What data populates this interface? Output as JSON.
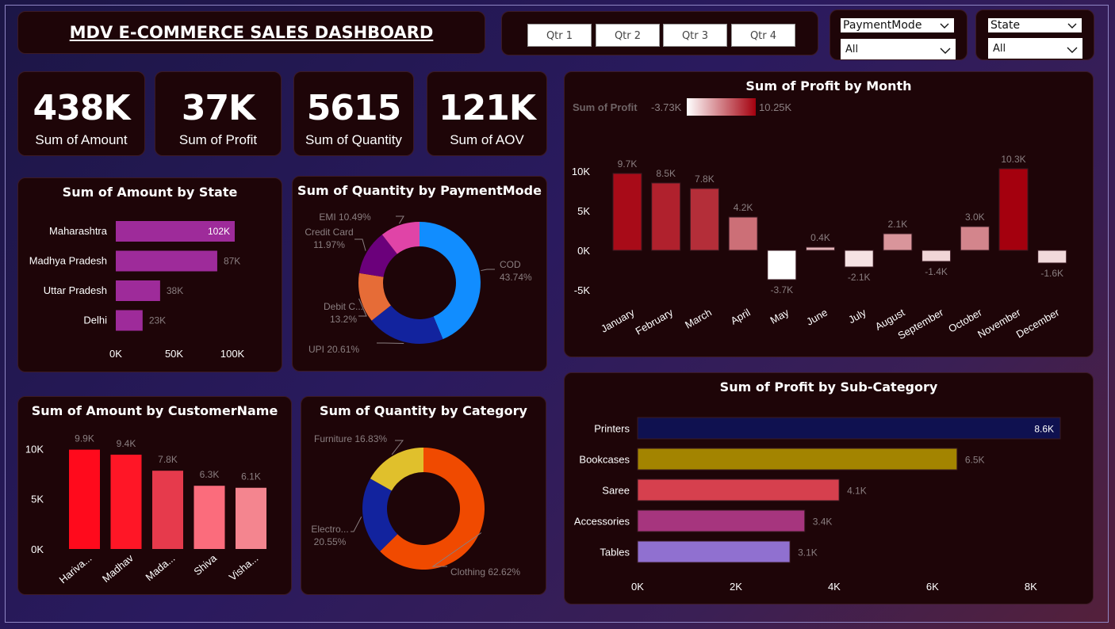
{
  "header": {
    "title": "MDV E-COMMERCE SALES DASHBOARD"
  },
  "quarters": [
    "Qtr 1",
    "Qtr 2",
    "Qtr 3",
    "Qtr 4"
  ],
  "slicers": {
    "payment": {
      "label": "PaymentMode",
      "value": "All"
    },
    "state": {
      "label": "State",
      "value": "All"
    }
  },
  "kpis": [
    {
      "value": "438K",
      "label": "Sum of Amount"
    },
    {
      "value": "37K",
      "label": "Sum of Profit"
    },
    {
      "value": "5615",
      "label": "Sum of Quantity"
    },
    {
      "value": "121K",
      "label": "Sum of AOV"
    }
  ],
  "chart_data": [
    {
      "id": "amount_by_state",
      "type": "bar",
      "orientation": "horizontal",
      "title": "Sum of Amount by State",
      "categories": [
        "Maharashtra",
        "Madhya Pradesh",
        "Uttar Pradesh",
        "Delhi"
      ],
      "values": [
        102000,
        87000,
        38000,
        23000
      ],
      "value_labels": [
        "102K",
        "87K",
        "38K",
        "23K"
      ],
      "xticks": [
        0,
        50000,
        100000
      ],
      "xtick_labels": [
        "0K",
        "50K",
        "100K"
      ],
      "xlim": [
        0,
        102000
      ],
      "color": "#9e2b9a"
    },
    {
      "id": "quantity_by_payment",
      "type": "pie",
      "donut": true,
      "title": "Sum of Quantity by PaymentMode",
      "categories": [
        "COD",
        "UPI",
        "Debit Card",
        "Credit Card",
        "EMI"
      ],
      "display_names": [
        "COD",
        "UPI",
        "Debit C...",
        "Credit Card",
        "EMI"
      ],
      "values": [
        43.74,
        20.61,
        13.2,
        11.97,
        10.49
      ],
      "value_labels": [
        "43.74%",
        "20.61%",
        "13.2%",
        "11.97%",
        "10.49%"
      ],
      "colors": [
        "#118dff",
        "#12239e",
        "#e66c37",
        "#6b007b",
        "#e044a7"
      ]
    },
    {
      "id": "profit_by_month",
      "type": "bar",
      "title": "Sum of Profit by Month",
      "legend_title": "Sum of Profit",
      "legend_min": "-3.73K",
      "legend_max": "10.25K",
      "categories": [
        "January",
        "February",
        "March",
        "April",
        "May",
        "June",
        "July",
        "August",
        "September",
        "October",
        "November",
        "December"
      ],
      "values": [
        9700,
        8500,
        7800,
        4200,
        -3700,
        400,
        -2100,
        2100,
        -1400,
        3000,
        10300,
        -1600
      ],
      "value_labels": [
        "9.7K",
        "8.5K",
        "7.8K",
        "4.2K",
        "-3.7K",
        "0.4K",
        "-2.1K",
        "2.1K",
        "-1.4K",
        "3.0K",
        "10.3K",
        "-1.6K"
      ],
      "yticks": [
        -5000,
        0,
        5000,
        10000
      ],
      "ytick_labels": [
        "-5K",
        "0K",
        "5K",
        "10K"
      ],
      "ylim": [
        -5500,
        12500
      ]
    },
    {
      "id": "amount_by_customer",
      "type": "bar",
      "title": "Sum of Amount by CustomerName",
      "categories": [
        "Harivansh",
        "Madhav",
        "Madan Mohan",
        "Shiva",
        "Vishakha"
      ],
      "display_names": [
        "Hariva...",
        "Madhav",
        "Mada...",
        "Shiva",
        "Visha..."
      ],
      "values": [
        9900,
        9400,
        7800,
        6300,
        6100
      ],
      "value_labels": [
        "9.9K",
        "9.4K",
        "7.8K",
        "6.3K",
        "6.1K"
      ],
      "yticks": [
        0,
        5000,
        10000
      ],
      "ytick_labels": [
        "0K",
        "5K",
        "10K"
      ],
      "ylim": [
        0,
        12000
      ],
      "colors": [
        "#ff0a1c",
        "#ff1626",
        "#e63a4c",
        "#fb6c7c",
        "#f4858f"
      ]
    },
    {
      "id": "quantity_by_category",
      "type": "pie",
      "donut": true,
      "title": "Sum of Quantity by Category",
      "categories": [
        "Clothing",
        "Electronics",
        "Furniture"
      ],
      "display_names": [
        "Clothing",
        "Electro...",
        "Furniture"
      ],
      "values": [
        62.62,
        20.55,
        16.83
      ],
      "value_labels": [
        "62.62%",
        "20.55%",
        "16.83%"
      ],
      "colors": [
        "#f04a00",
        "#12239e",
        "#e0c02c"
      ]
    },
    {
      "id": "profit_by_subcategory",
      "type": "bar",
      "orientation": "horizontal",
      "title": "Sum of Profit by Sub-Category",
      "categories": [
        "Printers",
        "Bookcases",
        "Saree",
        "Accessories",
        "Tables"
      ],
      "values": [
        8600,
        6500,
        4100,
        3400,
        3100
      ],
      "value_labels": [
        "8.6K",
        "6.5K",
        "4.1K",
        "3.4K",
        "3.1K"
      ],
      "xticks": [
        0,
        2000,
        4000,
        6000,
        8000
      ],
      "xtick_labels": [
        "0K",
        "2K",
        "4K",
        "6K",
        "8K"
      ],
      "xlim": [
        0,
        8600
      ],
      "colors": [
        "#0f1150",
        "#a38400",
        "#d6404e",
        "#a6357e",
        "#9070d0"
      ]
    }
  ]
}
